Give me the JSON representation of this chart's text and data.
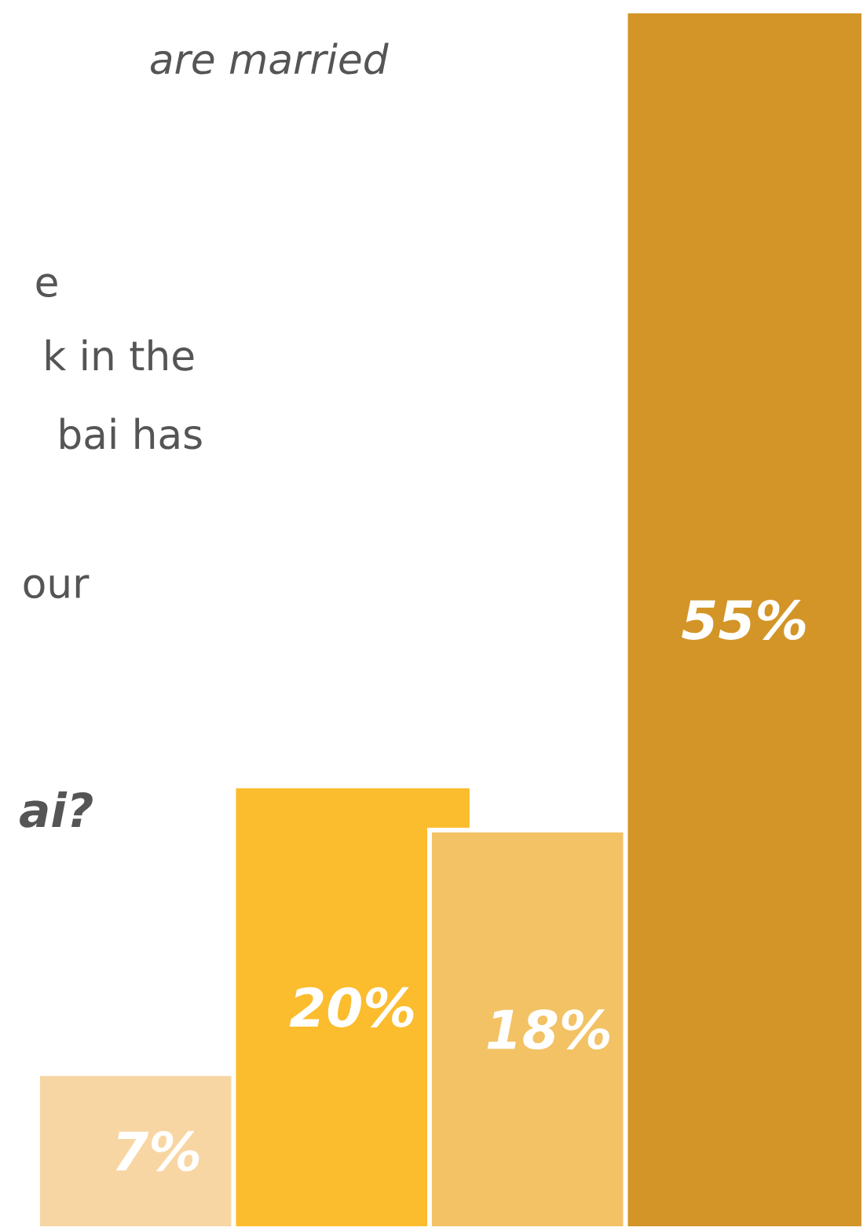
{
  "chart_data": {
    "type": "bar",
    "categories": [
      null,
      null,
      null,
      null
    ],
    "values": [
      7,
      20,
      18,
      55
    ],
    "value_labels": [
      "7%",
      "20%",
      "18%",
      "55%"
    ],
    "colors": [
      "#f8d6a3",
      "#fbbc2e",
      "#f2c264",
      "#d39528"
    ],
    "annotations": [
      "are married",
      "e",
      "k in the",
      "bai has",
      "our",
      "ai?"
    ]
  }
}
